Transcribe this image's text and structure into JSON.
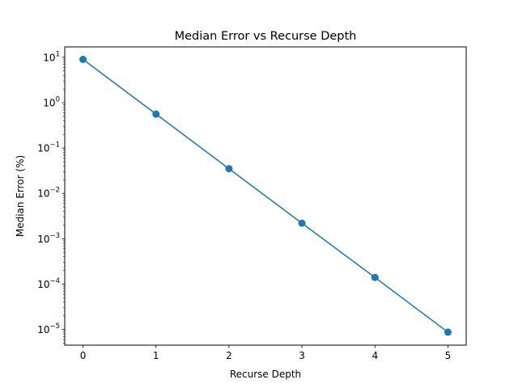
{
  "chart_data": {
    "type": "line",
    "title": "Median Error vs Recurse Depth",
    "xlabel": "Recurse Depth",
    "ylabel": "Median Error (%)",
    "x": [
      0,
      1,
      2,
      3,
      4,
      5
    ],
    "series": [
      {
        "values": [
          9.0,
          0.56,
          0.035,
          0.0022,
          0.00014,
          8.7e-06
        ]
      }
    ],
    "xlim": [
      -0.25,
      5.25
    ],
    "ylim": [
      4.5e-06,
      17
    ],
    "yscale": "log",
    "xticks": [
      0,
      1,
      2,
      3,
      4,
      5
    ],
    "yticks": [
      {
        "value": 10,
        "base": "10",
        "exp": "1"
      },
      {
        "value": 1,
        "base": "10",
        "exp": "0"
      },
      {
        "value": 0.1,
        "base": "10",
        "exp": "−1"
      },
      {
        "value": 0.01,
        "base": "10",
        "exp": "−2"
      },
      {
        "value": 0.001,
        "base": "10",
        "exp": "−3"
      },
      {
        "value": 0.0001,
        "base": "10",
        "exp": "−4"
      },
      {
        "value": 1e-05,
        "base": "10",
        "exp": "−5"
      }
    ],
    "markers": true,
    "grid": false,
    "colors": {
      "line": "#1f77b4"
    }
  }
}
